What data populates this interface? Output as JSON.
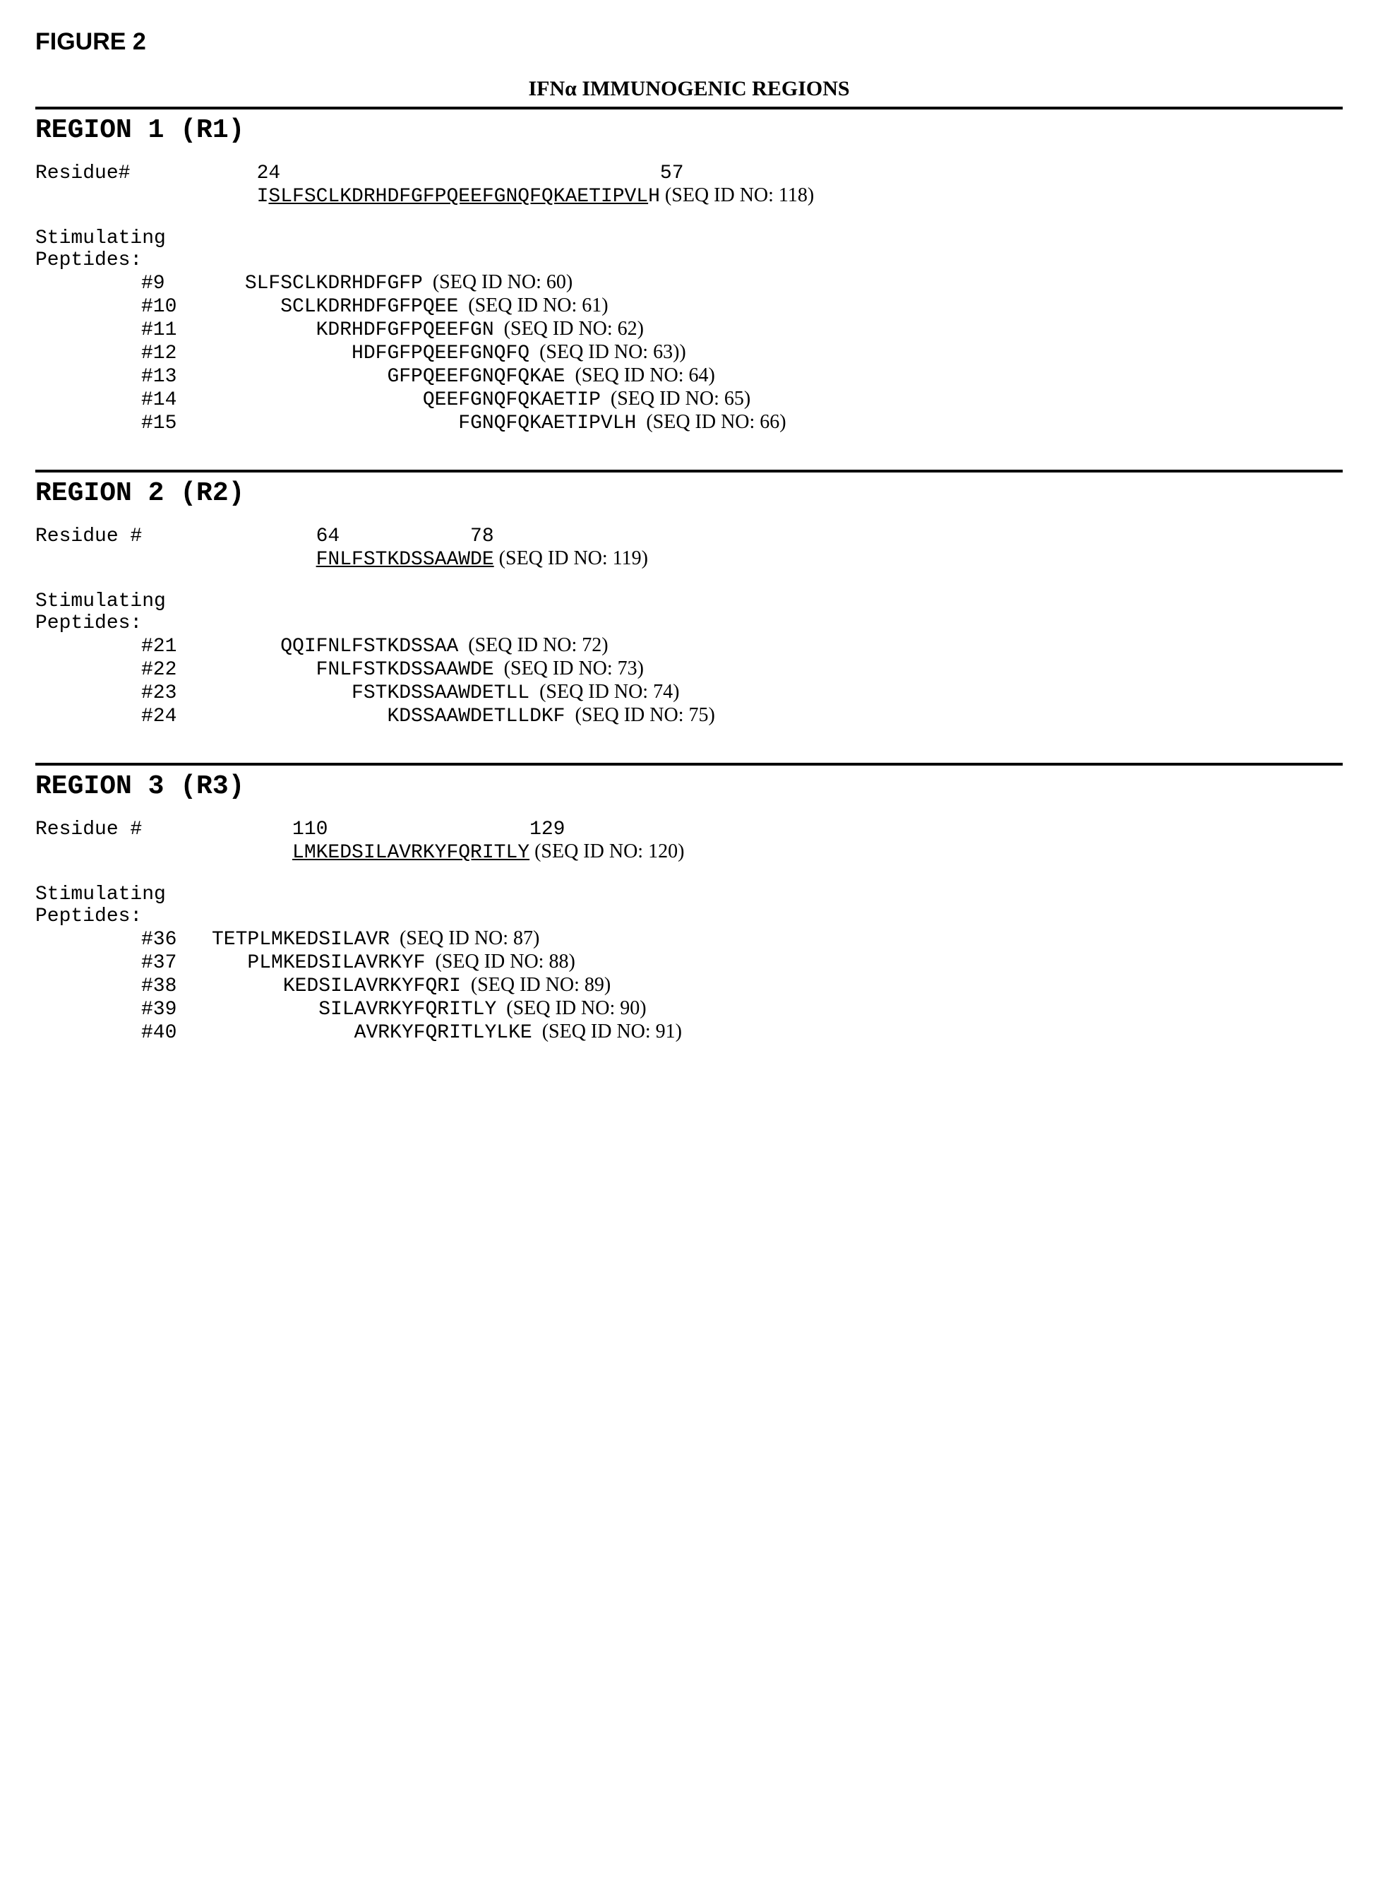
{
  "figure_label": "FIGURE 2",
  "main_title_prefix": "IFN",
  "main_title_alpha": "α",
  "main_title_suffix": " IMMUNOGENIC REGIONS",
  "regions": {
    "r1": {
      "title": "REGION 1 (R1)",
      "residue_label": "Residue#",
      "residue_start": "24",
      "residue_end": "57",
      "residue_nums_line": "24                                57",
      "sequence_mono": "ISLFSCLKDRHDFGFPQEEFGNQFQKAETIPVLH",
      "sequence_underline_start": 1,
      "sequence_underline_end": 32,
      "sequence_seqid": " (SEQ ID NO: 118)",
      "stim_label_1": "Stimulating",
      "stim_label_2": "Peptides:",
      "peptides": [
        {
          "num": "#9",
          "indent": "",
          "seq": "SLFSCLKDRHDFGFP",
          "seqid": "  (SEQ ID NO: 60)"
        },
        {
          "num": "#10",
          "indent": "   ",
          "seq": "SCLKDRHDFGFPQEE",
          "seqid": "  (SEQ ID NO: 61)"
        },
        {
          "num": "#11",
          "indent": "      ",
          "seq": "KDRHDFGFPQEEFGN",
          "seqid": "  (SEQ ID NO: 62)"
        },
        {
          "num": "#12",
          "indent": "         ",
          "seq": "HDFGFPQEEFGNQFQ",
          "seqid": "  (SEQ ID NO: 63))"
        },
        {
          "num": "#13",
          "indent": "            ",
          "seq": "GFPQEEFGNQFQKAE",
          "seqid": "  (SEQ ID NO: 64)"
        },
        {
          "num": "#14",
          "indent": "               ",
          "seq": "QEEFGNQFQKAETIP",
          "seqid": "  (SEQ ID NO: 65)"
        },
        {
          "num": "#15",
          "indent": "                  ",
          "seq": "FGNQFQKAETIPVLH",
          "seqid": "  (SEQ ID NO: 66)"
        }
      ]
    },
    "r2": {
      "title": "REGION 2 (R2)",
      "residue_label": "Residue #",
      "residue_nums_line": "64           78",
      "sequence_mono": "FNLFSTKDSSAAWDE",
      "sequence_seqid": " (SEQ ID NO: 119)",
      "stim_label_1": "Stimulating",
      "stim_label_2": "Peptides:",
      "peptides": [
        {
          "num": "#21",
          "indent": "",
          "seq": "QQIFNLFSTKDSSAA",
          "seqid": "  (SEQ ID NO: 72)"
        },
        {
          "num": "#22",
          "indent": "   ",
          "seq": "FNLFSTKDSSAAWDE",
          "seqid": "  (SEQ ID NO: 73)"
        },
        {
          "num": "#23",
          "indent": "      ",
          "seq": "FSTKDSSAAWDETLL",
          "seqid": "  (SEQ ID NO: 74)"
        },
        {
          "num": "#24",
          "indent": "         ",
          "seq": "KDSSAAWDETLLDKF",
          "seqid": "  (SEQ ID NO: 75)"
        }
      ]
    },
    "r3": {
      "title": "REGION 3 (R3)",
      "residue_label": "Residue #",
      "residue_nums_line": "110                 129",
      "sequence_mono": "LMKEDSILAVRKYFQRITLY",
      "sequence_seqid": " (SEQ ID NO: 120)",
      "stim_label_1": "Stimulating",
      "stim_label_2": "Peptides:",
      "peptides": [
        {
          "num": "#36",
          "indent": "",
          "seq": "TETPLMKEDSILAVR",
          "seqid": "  (SEQ ID NO: 87)"
        },
        {
          "num": "#37",
          "indent": "   ",
          "seq": "PLMKEDSILAVRKYF",
          "seqid": "  (SEQ ID NO: 88)"
        },
        {
          "num": "#38",
          "indent": "      ",
          "seq": "KEDSILAVRKYFQRI",
          "seqid": "  (SEQ ID NO: 89)"
        },
        {
          "num": "#39",
          "indent": "         ",
          "seq": "SILAVRKYFQRITLY",
          "seqid": "  (SEQ ID NO: 90)"
        },
        {
          "num": "#40",
          "indent": "            ",
          "seq": "AVRKYFQRITLYLKE",
          "seqid": "  (SEQ ID NO: 91)"
        }
      ]
    }
  },
  "layout": {
    "r1_seq_indent": "  ",
    "r2_seq_indent": "       ",
    "r2_pep_base_indent": "    ",
    "r3_seq_indent": "     ",
    "r3_pep36_num_indent": "",
    "r3_pep_base_indent": ""
  }
}
